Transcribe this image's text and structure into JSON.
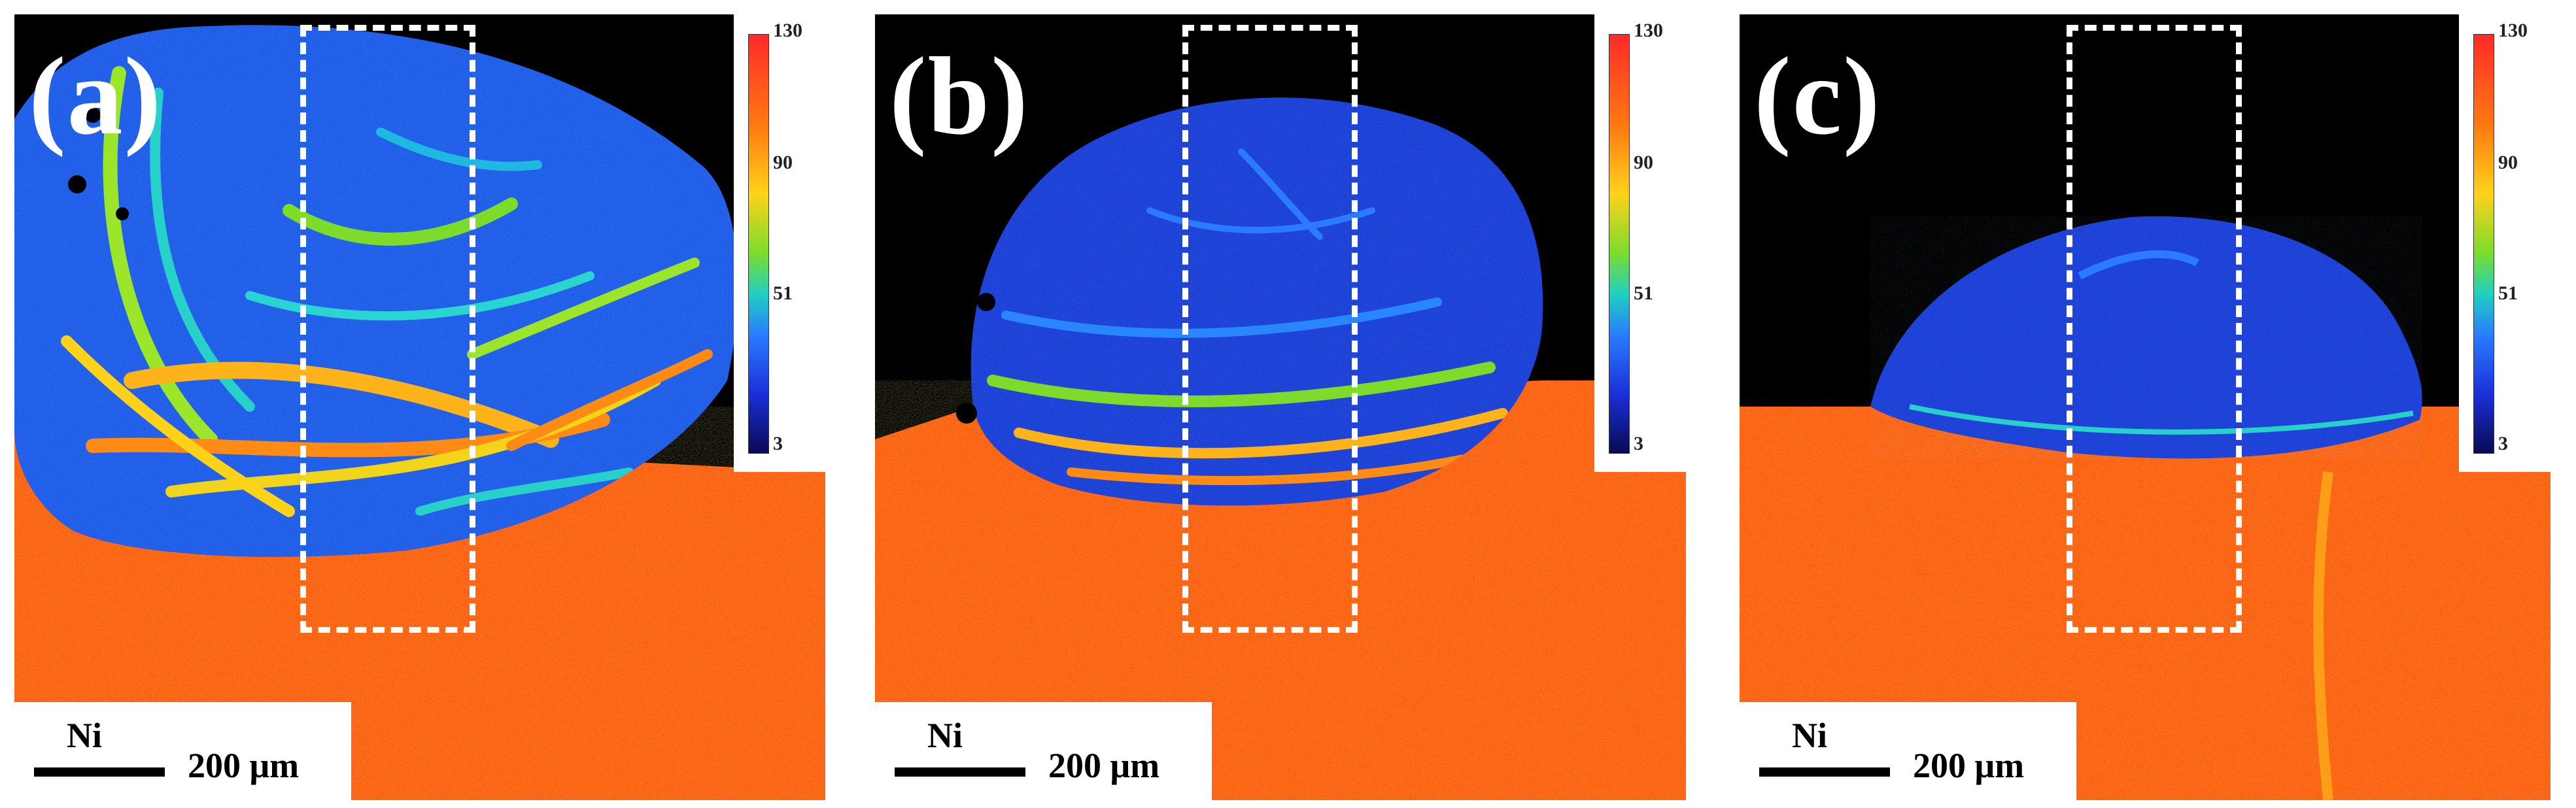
{
  "colors": {
    "background": "#000000",
    "substrate": "#ff5a10",
    "weld_low": "#1a3cd8",
    "weld_mid": "#2a7bff",
    "band_high": "#ffd21a",
    "roi_box": "#ffffff"
  },
  "panels": [
    {
      "label": "(a)",
      "element": "Ni",
      "scale_text": "200 μm",
      "colorbar": {
        "max": "130",
        "t1": "90",
        "t2": "51",
        "min": "3"
      }
    },
    {
      "label": "(b)",
      "element": "Ni",
      "scale_text": "200 μm",
      "colorbar": {
        "max": "130",
        "t1": "90",
        "t2": "51",
        "min": "3"
      }
    },
    {
      "label": "(c)",
      "element": "Ni",
      "scale_text": "200 μm",
      "colorbar": {
        "max": "130",
        "t1": "90",
        "t2": "51",
        "min": "3"
      }
    }
  ]
}
